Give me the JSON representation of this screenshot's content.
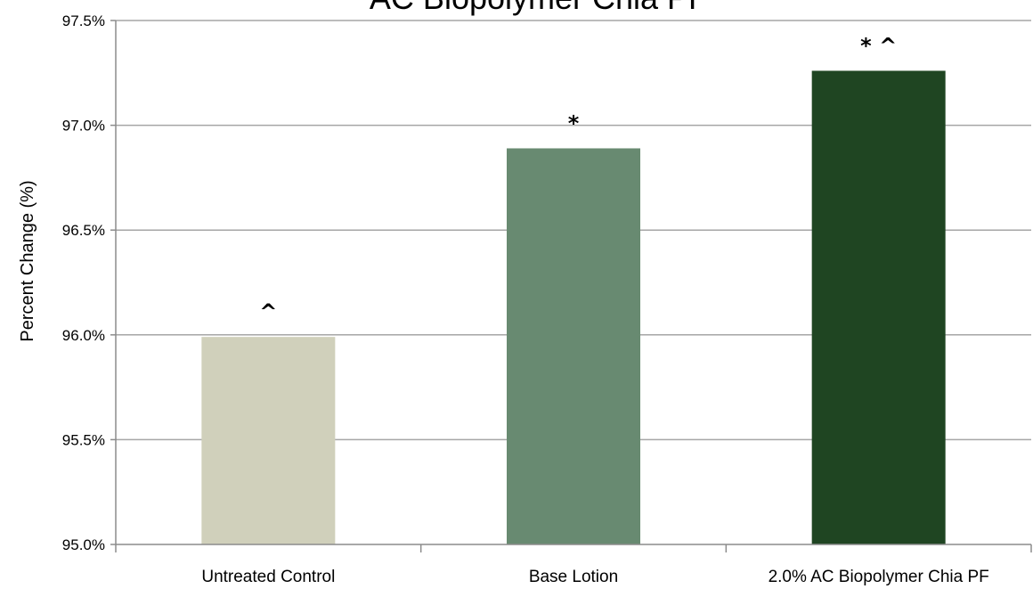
{
  "chart_data": {
    "type": "bar",
    "title": "AC Biopolymer Chia PF",
    "xlabel": "",
    "ylabel": "Percent Change (%)",
    "ylim": [
      95.0,
      97.5
    ],
    "yticks": [
      95.0,
      95.5,
      96.0,
      96.5,
      97.0,
      97.5
    ],
    "ytick_labels": [
      "95.0%",
      "95.5%",
      "96.0%",
      "96.5%",
      "97.0%",
      "97.5%"
    ],
    "categories": [
      "Untreated Control",
      "Base Lotion",
      "2.0% AC Biopolymer Chia PF"
    ],
    "values": [
      95.99,
      96.89,
      97.26
    ],
    "annotations": [
      "^",
      "*",
      "* ^"
    ],
    "bar_colors": [
      "#d0d0bb",
      "#688a71",
      "#1f4522"
    ],
    "grid": true,
    "legend": "none"
  }
}
